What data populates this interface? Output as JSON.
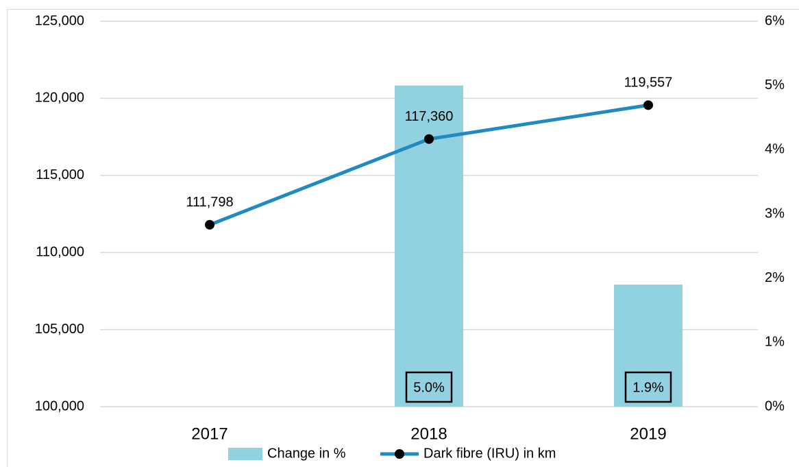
{
  "chart_data": {
    "type": "combo",
    "categories": [
      "2017",
      "2018",
      "2019"
    ],
    "series": [
      {
        "name": "Change in %",
        "type": "bar",
        "axis": "y2",
        "color": "#92d1df",
        "values": [
          null,
          5.0,
          1.9
        ],
        "value_labels": [
          null,
          "5.0%",
          "1.9%"
        ]
      },
      {
        "name": "Dark fibre (IRU) in km",
        "type": "line",
        "axis": "y",
        "color": "#1f8bc1",
        "values": [
          111798,
          117360,
          119557
        ],
        "value_labels": [
          "111,798",
          "117,360",
          "119,557"
        ]
      }
    ],
    "ylim": [
      100000,
      125000
    ],
    "yticks": [
      {
        "value": 100000,
        "label": "100,000"
      },
      {
        "value": 105000,
        "label": "105,000"
      },
      {
        "value": 110000,
        "label": "110,000"
      },
      {
        "value": 115000,
        "label": "115,000"
      },
      {
        "value": 120000,
        "label": "120,000"
      },
      {
        "value": 125000,
        "label": "125,000"
      }
    ],
    "y2lim": [
      0,
      6
    ],
    "y2ticks": [
      {
        "value": 0,
        "label": "0%"
      },
      {
        "value": 1,
        "label": "1%"
      },
      {
        "value": 2,
        "label": "2%"
      },
      {
        "value": 3,
        "label": "3%"
      },
      {
        "value": 4,
        "label": "4%"
      },
      {
        "value": 5,
        "label": "5%"
      },
      {
        "value": 6,
        "label": "6%"
      }
    ],
    "grid": true,
    "legend": "bottom"
  }
}
